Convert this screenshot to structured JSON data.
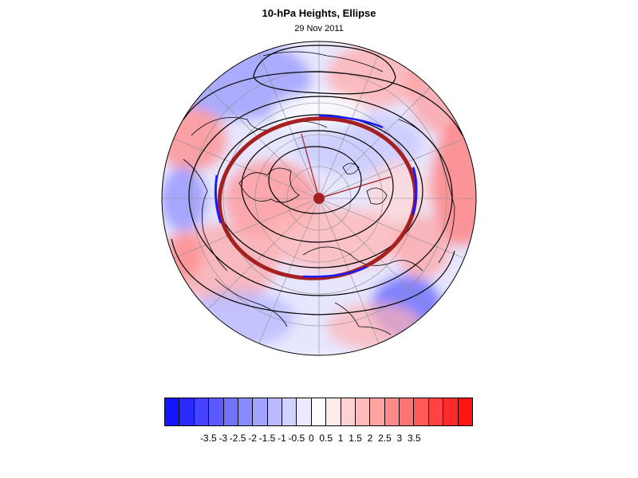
{
  "title": "10-hPa Heights, Ellipse",
  "subtitle": "29 Nov 2011",
  "map": {
    "projection": "north polar stereographic",
    "field": "height anomaly (shaded)",
    "contours": "10-hPa geopotential height",
    "ellipse_color": "#a52020",
    "land_outline_color": "#000000"
  },
  "colorbar": {
    "colors": [
      "#1414ff",
      "#2a2aff",
      "#4242ff",
      "#5a5aff",
      "#7272ff",
      "#8a8aff",
      "#a2a2ff",
      "#babaff",
      "#d2d2ff",
      "#eaeaff",
      "#ffffff",
      "#ffeaea",
      "#ffd2d2",
      "#ffbaba",
      "#ffa2a2",
      "#ff8a8a",
      "#ff7272",
      "#ff5a5a",
      "#ff4242",
      "#ff2a2a",
      "#ff1414"
    ],
    "labels": [
      "-3.5",
      "-3",
      "-2.5",
      "-2",
      "-1.5",
      "-1",
      "-0.5",
      "0",
      "0.5",
      "1",
      "1.5",
      "2",
      "2.5",
      "3",
      "3.5"
    ]
  }
}
